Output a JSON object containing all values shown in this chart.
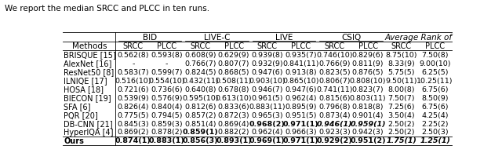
{
  "caption": "We report the median SRCC and PLCC in ten runs.",
  "col_groups": [
    "BID",
    "LIVE-C",
    "LIVE",
    "CSIQ",
    "Average Rank of"
  ],
  "col_group_italic": [
    false,
    false,
    false,
    false,
    true
  ],
  "sub_cols": [
    "SRCC",
    "PLCC"
  ],
  "row_header": "Methods",
  "rows": [
    {
      "name": "BRISQUE [15]",
      "ref": false,
      "data": [
        "0.562(8)",
        "0.593(8)",
        "0.608(9)",
        "0.629(9)",
        "0.939(8)",
        "0.935(7)",
        "0.746(10)",
        "0.829(6)",
        "8.75(10)",
        "7.50(8)"
      ]
    },
    {
      "name": "AlexNet [16]",
      "ref": false,
      "data": [
        "-",
        "-",
        "0.766(7)",
        "0.807(7)",
        "0.932(9)",
        "0.841(11)",
        "0.766(9)",
        "0.811(9)",
        "8.33(9)",
        "9.00(10)"
      ]
    },
    {
      "name": "ResNet50 [8]",
      "ref": false,
      "data": [
        "0.583(7)",
        "0.599(7)",
        "0.824(5)",
        "0.868(5)",
        "0.947(6)",
        "0.913(8)",
        "0.823(5)",
        "0.876(5)",
        "5.75(5)",
        "6.25(5)"
      ]
    },
    {
      "name": "ILNIQE [17]",
      "ref": false,
      "data": [
        "0.516(10)",
        "0.554(10)",
        "0.432(11)",
        "0.508(11)",
        "0.903(10)",
        "0.865(10)",
        "0.806(7)",
        "0.808(10)",
        "9.50(11)",
        "10.25(11)"
      ]
    },
    {
      "name": "HOSA [18]",
      "ref": false,
      "data": [
        "0.721(6)",
        "0.736(6)",
        "0.640(8)",
        "0.678(8)",
        "0.946(7)",
        "0.947(6)",
        "0.741(11)",
        "0.823(7)",
        "8.00(8)",
        "6.75(6)"
      ]
    },
    {
      "name": "BIECON [19]",
      "ref": false,
      "data": [
        "0.539(9)",
        "0.576(9)",
        "0.595(10)",
        "0.613(10)",
        "0.961(5)",
        "0.962(4)",
        "0.815(6)",
        "0.803(11)",
        "7.50(7)",
        "8.50(9)"
      ]
    },
    {
      "name": "SFA [6]",
      "ref": false,
      "data": [
        "0.826(4)",
        "0.840(4)",
        "0.812(6)",
        "0.833(6)",
        "0.883(11)",
        "0.895(9)",
        "0.796(8)",
        "0.818(8)",
        "7.25(6)",
        "6.75(6)"
      ]
    },
    {
      "name": "PQR [20]",
      "ref": false,
      "data": [
        "0.775(5)",
        "0.794(5)",
        "0.857(2)",
        "0.872(3)",
        "0.965(3)",
        "0.951(5)",
        "0.873(4)",
        "0.901(4)",
        "3.50(4)",
        "4.25(4)"
      ]
    },
    {
      "name": "DB-CNN [21]",
      "ref": false,
      "data": [
        "0.845(3)",
        "0.859(3)",
        "0.851(4)",
        "0.869(4)",
        "0.968(2)",
        "0.971(1)",
        "0.946(1)",
        "0.959(1)",
        "2.50(2)",
        "2.25(2)"
      ]
    },
    {
      "name": "HyperIQA [4]",
      "ref": false,
      "data": [
        "0.869(2)",
        "0.878(2)",
        "0.859(1)",
        "0.882(2)",
        "0.962(4)",
        "0.966(3)",
        "0.923(3)",
        "0.942(3)",
        "2.50(2)",
        "2.50(3)"
      ]
    },
    {
      "name": "Ours",
      "ref": true,
      "data": [
        "0.874(1)",
        "0.883(1)",
        "0.856(3)",
        "0.893(1)",
        "0.969(1)",
        "0.971(1)",
        "0.929(2)",
        "0.951(2)",
        "1.75(1)",
        "1.25(1)"
      ]
    }
  ],
  "bold_cells": {
    "DB-CNN [21]": [
      4,
      5,
      6,
      7
    ],
    "HyperIQA [4]": [
      2
    ],
    "Ours": [
      0,
      1,
      3,
      4,
      5,
      8,
      9
    ]
  },
  "bold_italic_cells": {
    "DB-CNN [21]": [
      6,
      7
    ],
    "Ours": [
      8,
      9
    ]
  }
}
